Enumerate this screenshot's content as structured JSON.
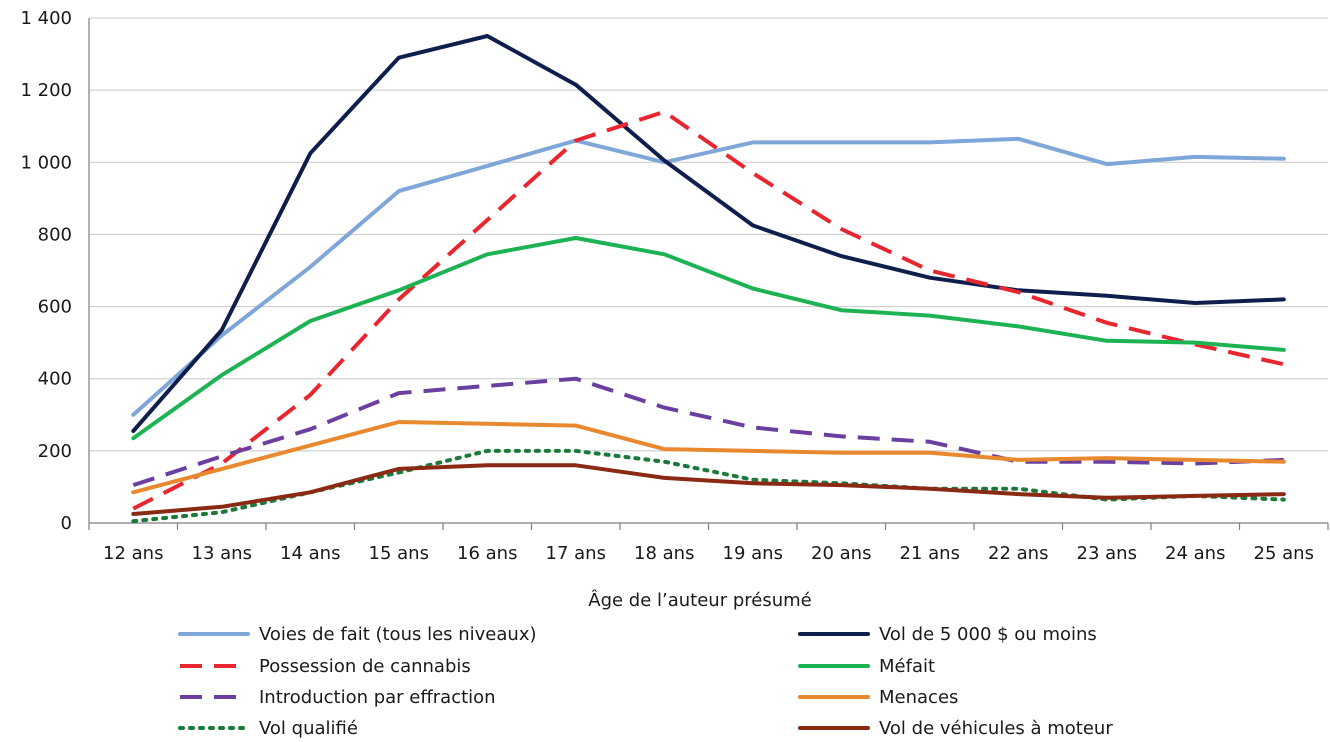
{
  "chart_data": {
    "type": "line",
    "xlabel": "Âge de l’auteur présumé",
    "ylabel": "",
    "ylim": [
      0,
      1400
    ],
    "y_ticks": [
      "0",
      "200",
      "400",
      "600",
      "800",
      "1 000",
      "1 200",
      "1 400"
    ],
    "y_tick_values": [
      0,
      200,
      400,
      600,
      800,
      1000,
      1200,
      1400
    ],
    "grid": "horizontal",
    "legend_position": "bottom",
    "categories": [
      "12 ans",
      "13 ans",
      "14 ans",
      "15 ans",
      "16 ans",
      "17 ans",
      "18 ans",
      "19 ans",
      "20 ans",
      "21 ans",
      "22 ans",
      "23 ans",
      "24 ans",
      "25 ans"
    ],
    "series": [
      {
        "name": "Voies de fait (tous les niveaux)",
        "color": "#7ea6d8",
        "dash": "solid",
        "values": [
          300,
          520,
          710,
          920,
          990,
          1060,
          1000,
          1055,
          1055,
          1055,
          1065,
          995,
          1015,
          1010
        ]
      },
      {
        "name": "Vol de 5 000 $ ou moins",
        "color": "#0f1f4d",
        "dash": "solid",
        "values": [
          255,
          535,
          1025,
          1290,
          1350,
          1215,
          1005,
          825,
          740,
          680,
          645,
          630,
          610,
          620
        ]
      },
      {
        "name": "Possession de cannabis",
        "color": "#e8262f",
        "dash": "dashed",
        "values": [
          40,
          165,
          355,
          620,
          840,
          1060,
          1140,
          970,
          815,
          700,
          640,
          555,
          495,
          440
        ]
      },
      {
        "name": "Méfait",
        "color": "#1db353",
        "dash": "solid",
        "values": [
          235,
          410,
          560,
          645,
          745,
          790,
          745,
          650,
          590,
          575,
          545,
          505,
          500,
          480
        ]
      },
      {
        "name": "Introduction par effraction",
        "color": "#6a3fa0",
        "dash": "dashed",
        "values": [
          105,
          185,
          260,
          360,
          380,
          400,
          320,
          265,
          240,
          225,
          170,
          170,
          165,
          175
        ]
      },
      {
        "name": "Menaces",
        "color": "#e8892f",
        "dash": "solid",
        "values": [
          85,
          150,
          215,
          280,
          275,
          270,
          205,
          200,
          195,
          195,
          175,
          180,
          175,
          170
        ]
      },
      {
        "name": "Vol qualifié",
        "color": "#1b7a3a",
        "dash": "dotted",
        "values": [
          5,
          30,
          85,
          140,
          200,
          200,
          170,
          120,
          110,
          95,
          95,
          65,
          75,
          65
        ]
      },
      {
        "name": "Vol de véhicules à moteur",
        "color": "#8b2a14",
        "dash": "solid",
        "values": [
          25,
          45,
          85,
          150,
          160,
          160,
          125,
          110,
          105,
          95,
          80,
          70,
          75,
          80
        ]
      }
    ]
  }
}
